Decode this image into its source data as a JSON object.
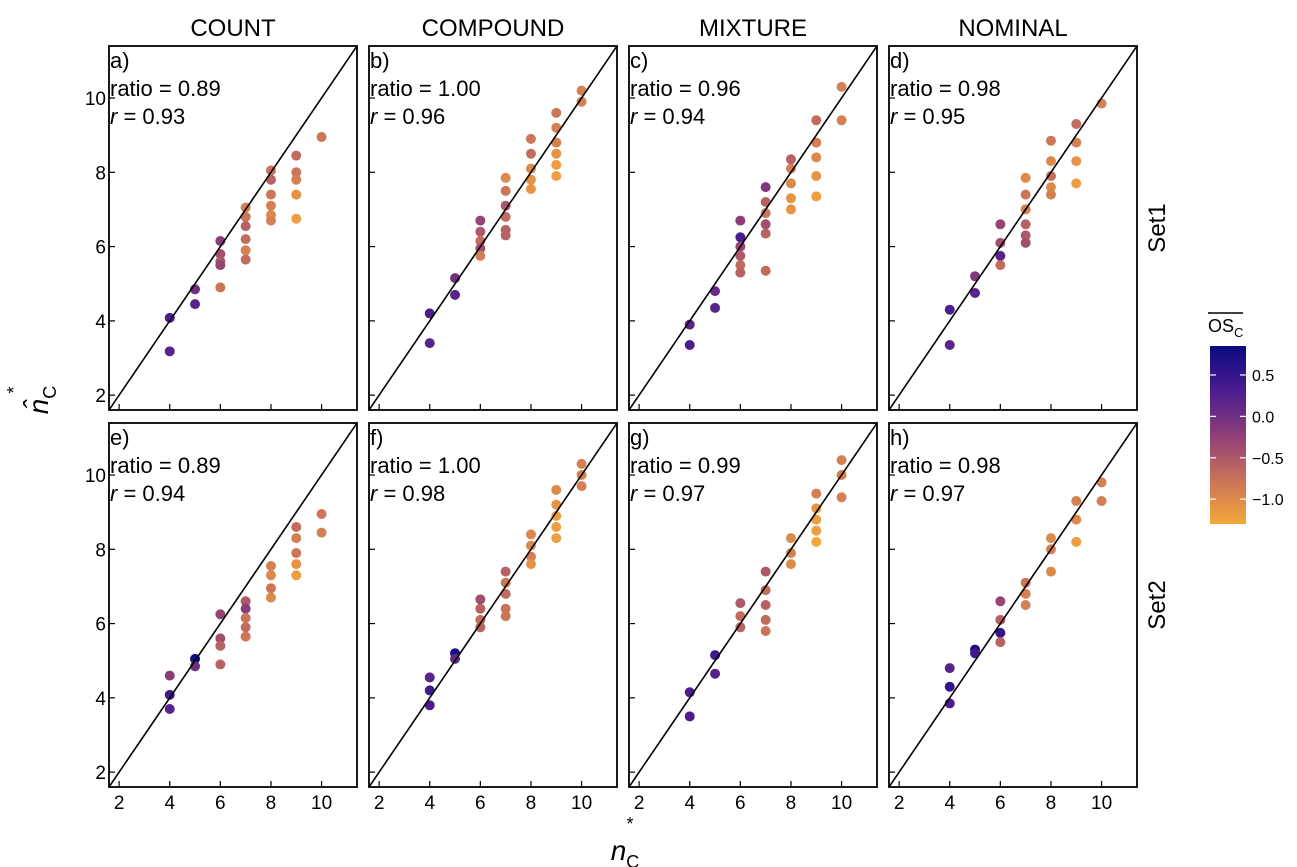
{
  "figure": {
    "x_label": "n",
    "x_label_sup": "*",
    "x_label_sub": "C",
    "y_label": "n̂",
    "y_label_sup": "*",
    "y_label_sub": "C",
    "columns": [
      "COUNT",
      "COMPOUND",
      "MIXTURE",
      "NOMINAL"
    ],
    "rows": [
      "Set1",
      "Set2"
    ],
    "colorbar": {
      "title": "OS",
      "title_sub": "C",
      "ticks": [
        "0.5",
        "0.0",
        "−0.5",
        "−1.0"
      ],
      "tick_values": [
        0.5,
        0.0,
        -0.5,
        -1.0
      ],
      "range": [
        -1.3,
        0.85
      ],
      "colors": [
        "#f5a83a",
        "#c9725a",
        "#8e3e78",
        "#4a1c8f",
        "#0a0a80"
      ]
    }
  },
  "chart_data": {
    "type": "scatter",
    "xlim": [
      1.6,
      11.4
    ],
    "ylim": [
      1.6,
      11.4
    ],
    "x_ticks": [
      2,
      4,
      6,
      8,
      10
    ],
    "y_ticks": [
      2,
      4,
      6,
      8,
      10
    ],
    "reference_line": "y = x",
    "panels": [
      {
        "id": "a)",
        "column": "COUNT",
        "row": "Set1",
        "ratio_text": "ratio = 0.89",
        "r_text": "= 0.93",
        "points": [
          [
            4,
            4.08,
            0.3
          ],
          [
            4,
            3.18,
            0.2
          ],
          [
            5,
            4.85,
            0.0
          ],
          [
            5,
            4.45,
            0.2
          ],
          [
            6,
            6.15,
            -0.2
          ],
          [
            6,
            5.8,
            -0.4
          ],
          [
            6,
            5.6,
            -0.5
          ],
          [
            6,
            5.5,
            -0.3
          ],
          [
            6,
            4.9,
            -0.8
          ],
          [
            7,
            7.05,
            -0.9
          ],
          [
            7,
            6.8,
            -0.8
          ],
          [
            7,
            6.55,
            -0.6
          ],
          [
            7,
            6.2,
            -0.7
          ],
          [
            7,
            5.9,
            -0.9
          ],
          [
            7,
            5.65,
            -0.7
          ],
          [
            8,
            8.05,
            -0.8
          ],
          [
            8,
            7.8,
            -0.6
          ],
          [
            8,
            7.4,
            -0.8
          ],
          [
            8,
            7.1,
            -0.9
          ],
          [
            8,
            6.85,
            -1.0
          ],
          [
            8,
            6.7,
            -0.9
          ],
          [
            9,
            8.45,
            -0.7
          ],
          [
            9,
            8.0,
            -0.8
          ],
          [
            9,
            7.8,
            -0.9
          ],
          [
            9,
            7.4,
            -1.1
          ],
          [
            9,
            6.75,
            -1.2
          ],
          [
            10,
            8.95,
            -0.8
          ]
        ]
      },
      {
        "id": "b)",
        "column": "COMPOUND",
        "row": "Set1",
        "ratio_text": "ratio = 1.00",
        "r_text": "= 0.96",
        "points": [
          [
            4,
            4.2,
            0.3
          ],
          [
            4,
            3.4,
            0.2
          ],
          [
            5,
            5.15,
            0.0
          ],
          [
            5,
            4.7,
            0.2
          ],
          [
            6,
            6.7,
            -0.3
          ],
          [
            6,
            6.4,
            -0.5
          ],
          [
            6,
            6.15,
            -0.7
          ],
          [
            6,
            5.95,
            -0.4
          ],
          [
            6,
            5.75,
            -0.9
          ],
          [
            7,
            7.85,
            -1.0
          ],
          [
            7,
            7.5,
            -0.8
          ],
          [
            7,
            7.1,
            -0.5
          ],
          [
            7,
            6.8,
            -0.7
          ],
          [
            7,
            6.45,
            -0.6
          ],
          [
            7,
            6.3,
            -0.6
          ],
          [
            8,
            8.9,
            -0.8
          ],
          [
            8,
            8.5,
            -0.7
          ],
          [
            8,
            8.1,
            -1.0
          ],
          [
            8,
            7.8,
            -1.1
          ],
          [
            8,
            7.55,
            -1.1
          ],
          [
            9,
            9.6,
            -0.8
          ],
          [
            9,
            9.2,
            -0.9
          ],
          [
            9,
            8.8,
            -0.9
          ],
          [
            9,
            8.5,
            -1.1
          ],
          [
            9,
            8.2,
            -1.2
          ],
          [
            9,
            7.9,
            -1.2
          ],
          [
            10,
            10.2,
            -0.9
          ],
          [
            10,
            9.9,
            -0.9
          ]
        ]
      },
      {
        "id": "c)",
        "column": "MIXTURE",
        "row": "Set1",
        "ratio_text": "ratio = 0.96",
        "r_text": "= 0.94",
        "points": [
          [
            4,
            3.9,
            0.2
          ],
          [
            4,
            3.35,
            0.3
          ],
          [
            5,
            4.8,
            0.1
          ],
          [
            5,
            4.35,
            0.2
          ],
          [
            6,
            6.25,
            0.3
          ],
          [
            6,
            6.7,
            -0.2
          ],
          [
            6,
            6.0,
            -0.3
          ],
          [
            6,
            5.75,
            -0.5
          ],
          [
            6,
            5.5,
            -0.7
          ],
          [
            6,
            5.3,
            -0.6
          ],
          [
            7,
            7.6,
            -0.1
          ],
          [
            7,
            7.2,
            -0.6
          ],
          [
            7,
            6.9,
            -0.8
          ],
          [
            7,
            6.6,
            -0.4
          ],
          [
            7,
            6.35,
            -0.6
          ],
          [
            7,
            5.35,
            -0.7
          ],
          [
            8,
            8.35,
            -0.6
          ],
          [
            8,
            8.1,
            -0.9
          ],
          [
            8,
            7.7,
            -1.0
          ],
          [
            8,
            7.3,
            -1.1
          ],
          [
            8,
            7.0,
            -1.1
          ],
          [
            9,
            9.4,
            -0.7
          ],
          [
            9,
            8.8,
            -0.9
          ],
          [
            9,
            8.4,
            -1.0
          ],
          [
            9,
            7.9,
            -1.1
          ],
          [
            9,
            7.35,
            -1.2
          ],
          [
            10,
            10.3,
            -0.9
          ],
          [
            10,
            9.4,
            -0.9
          ]
        ]
      },
      {
        "id": "d)",
        "column": "NOMINAL",
        "row": "Set1",
        "ratio_text": "ratio = 0.98",
        "r_text": "= 0.95",
        "points": [
          [
            4,
            4.3,
            0.3
          ],
          [
            4,
            3.35,
            0.2
          ],
          [
            5,
            5.2,
            -0.1
          ],
          [
            5,
            4.75,
            0.2
          ],
          [
            6,
            6.6,
            -0.3
          ],
          [
            6,
            6.1,
            -0.4
          ],
          [
            6,
            5.75,
            0.2
          ],
          [
            6,
            5.5,
            -0.7
          ],
          [
            7,
            7.85,
            -1.0
          ],
          [
            7,
            7.4,
            -0.8
          ],
          [
            7,
            7.0,
            -0.9
          ],
          [
            7,
            6.6,
            -0.6
          ],
          [
            7,
            6.3,
            -0.5
          ],
          [
            7,
            6.1,
            -0.4
          ],
          [
            8,
            8.85,
            -0.8
          ],
          [
            8,
            8.3,
            -1.0
          ],
          [
            8,
            7.9,
            -0.7
          ],
          [
            8,
            7.6,
            -1.0
          ],
          [
            8,
            7.4,
            -0.9
          ],
          [
            9,
            9.3,
            -0.7
          ],
          [
            9,
            8.8,
            -0.9
          ],
          [
            9,
            8.3,
            -1.1
          ],
          [
            9,
            7.7,
            -1.2
          ],
          [
            10,
            9.85,
            -0.9
          ]
        ]
      },
      {
        "id": "e)",
        "column": "COUNT",
        "row": "Set2",
        "ratio_text": "ratio = 0.89",
        "r_text": "= 0.94",
        "points": [
          [
            4,
            4.6,
            -0.2
          ],
          [
            4,
            4.08,
            0.4
          ],
          [
            4,
            3.7,
            0.2
          ],
          [
            5,
            5.05,
            0.8
          ],
          [
            5,
            4.85,
            0.0
          ],
          [
            6,
            6.25,
            -0.3
          ],
          [
            6,
            5.6,
            -0.4
          ],
          [
            6,
            5.4,
            -0.6
          ],
          [
            6,
            4.9,
            -0.6
          ],
          [
            7,
            6.6,
            -0.5
          ],
          [
            7,
            6.4,
            -0.2
          ],
          [
            7,
            6.15,
            -0.8
          ],
          [
            7,
            5.9,
            -0.7
          ],
          [
            7,
            5.65,
            -0.8
          ],
          [
            8,
            7.55,
            -0.9
          ],
          [
            8,
            7.3,
            -1.0
          ],
          [
            8,
            6.95,
            -0.8
          ],
          [
            8,
            6.7,
            -1.0
          ],
          [
            9,
            8.6,
            -0.7
          ],
          [
            9,
            8.3,
            -0.9
          ],
          [
            9,
            7.9,
            -0.8
          ],
          [
            9,
            7.6,
            -1.1
          ],
          [
            9,
            7.3,
            -1.2
          ],
          [
            10,
            8.95,
            -0.8
          ],
          [
            10,
            8.45,
            -0.9
          ]
        ]
      },
      {
        "id": "f)",
        "column": "COMPOUND",
        "row": "Set2",
        "ratio_text": "ratio = 1.00",
        "r_text": "= 0.98",
        "points": [
          [
            4,
            4.55,
            0.2
          ],
          [
            4,
            4.2,
            0.4
          ],
          [
            4,
            3.8,
            0.3
          ],
          [
            5,
            5.2,
            0.7
          ],
          [
            5,
            5.05,
            0.1
          ],
          [
            6,
            6.65,
            -0.4
          ],
          [
            6,
            6.4,
            -0.6
          ],
          [
            6,
            6.1,
            -0.7
          ],
          [
            6,
            5.9,
            -0.6
          ],
          [
            7,
            7.4,
            -0.6
          ],
          [
            7,
            7.1,
            -0.8
          ],
          [
            7,
            6.8,
            -0.7
          ],
          [
            7,
            6.4,
            -0.8
          ],
          [
            7,
            6.2,
            -0.8
          ],
          [
            8,
            8.4,
            -1.0
          ],
          [
            8,
            8.1,
            -1.0
          ],
          [
            8,
            7.8,
            -0.9
          ],
          [
            8,
            7.6,
            -1.1
          ],
          [
            9,
            9.6,
            -1.0
          ],
          [
            9,
            9.2,
            -1.1
          ],
          [
            9,
            8.9,
            -1.2
          ],
          [
            9,
            8.6,
            -1.2
          ],
          [
            9,
            8.3,
            -1.2
          ],
          [
            10,
            10.3,
            -0.9
          ],
          [
            10,
            10.0,
            -0.9
          ],
          [
            10,
            9.7,
            -0.9
          ]
        ]
      },
      {
        "id": "g)",
        "column": "MIXTURE",
        "row": "Set2",
        "ratio_text": "ratio = 0.99",
        "r_text": "= 0.97",
        "points": [
          [
            4,
            4.15,
            0.3
          ],
          [
            4,
            3.5,
            0.3
          ],
          [
            5,
            5.15,
            0.4
          ],
          [
            5,
            4.65,
            0.2
          ],
          [
            6,
            6.55,
            -0.5
          ],
          [
            6,
            6.2,
            -0.7
          ],
          [
            6,
            5.9,
            -0.6
          ],
          [
            7,
            7.4,
            -0.5
          ],
          [
            7,
            6.9,
            -0.7
          ],
          [
            7,
            6.5,
            -0.6
          ],
          [
            7,
            6.1,
            -0.7
          ],
          [
            7,
            5.8,
            -0.8
          ],
          [
            8,
            8.3,
            -1.0
          ],
          [
            8,
            7.9,
            -0.9
          ],
          [
            8,
            7.6,
            -1.0
          ],
          [
            9,
            9.5,
            -0.9
          ],
          [
            9,
            9.1,
            -1.1
          ],
          [
            9,
            8.8,
            -1.2
          ],
          [
            9,
            8.5,
            -1.2
          ],
          [
            9,
            8.2,
            -1.3
          ],
          [
            10,
            10.4,
            -0.9
          ],
          [
            10,
            10.0,
            -0.9
          ],
          [
            10,
            9.4,
            -0.9
          ]
        ]
      },
      {
        "id": "h)",
        "column": "NOMINAL",
        "row": "Set2",
        "ratio_text": "ratio = 0.98",
        "r_text": "= 0.97",
        "points": [
          [
            4,
            4.8,
            0.2
          ],
          [
            4,
            4.3,
            0.5
          ],
          [
            4,
            3.85,
            0.3
          ],
          [
            5,
            5.3,
            0.8
          ],
          [
            5,
            5.2,
            0.4
          ],
          [
            6,
            6.6,
            -0.3
          ],
          [
            6,
            6.1,
            -0.6
          ],
          [
            6,
            5.75,
            0.5
          ],
          [
            6,
            5.5,
            -0.6
          ],
          [
            7,
            7.1,
            -0.8
          ],
          [
            7,
            6.8,
            -0.9
          ],
          [
            7,
            6.5,
            -0.9
          ],
          [
            8,
            8.3,
            -1.0
          ],
          [
            8,
            8.0,
            -0.9
          ],
          [
            8,
            7.4,
            -1.0
          ],
          [
            9,
            9.3,
            -0.9
          ],
          [
            9,
            8.8,
            -1.0
          ],
          [
            9,
            8.2,
            -1.2
          ],
          [
            10,
            9.8,
            -0.9
          ],
          [
            10,
            9.3,
            -0.9
          ]
        ]
      }
    ]
  }
}
